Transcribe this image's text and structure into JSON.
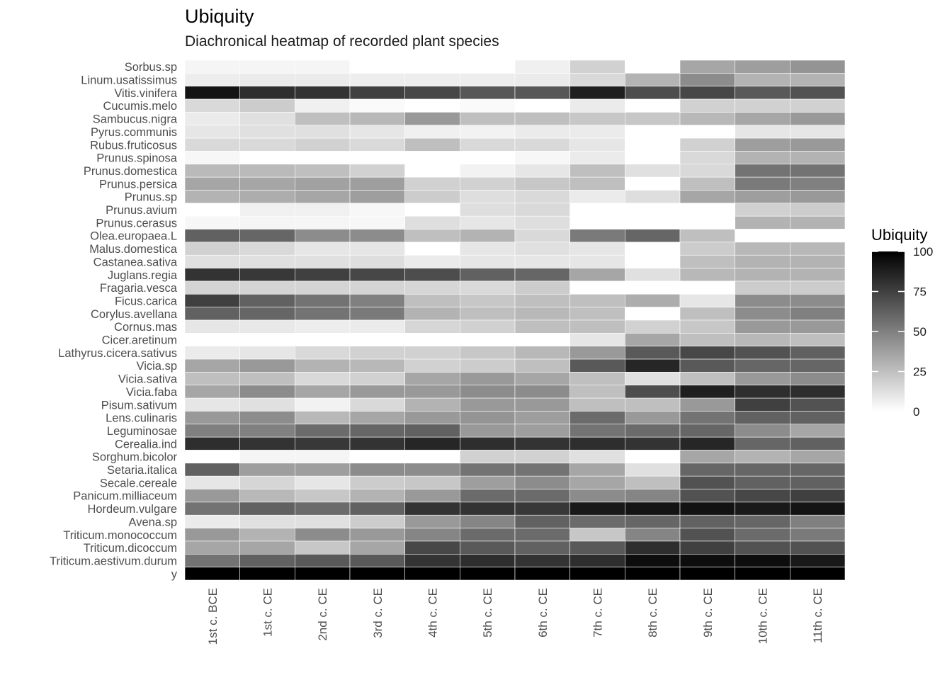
{
  "chart_data": {
    "type": "heatmap",
    "title": "Ubiquity",
    "subtitle": "Diachronical heatmap of recorded plant species",
    "xlabel": "",
    "ylabel": "",
    "x_categories": [
      "1st c. BCE",
      "1st c. CE",
      "2nd c. CE",
      "3rd c. CE",
      "4th c. CE",
      "5th c. CE",
      "6th c. CE",
      "7th c. CE",
      "8th c. CE",
      "9th c. CE",
      "10th c. CE",
      "11th c. CE"
    ],
    "y_categories": [
      "Sorbus.sp",
      "Linum.usatissimus",
      "Vitis.vinifera",
      "Cucumis.melo",
      "Sambucus.nigra",
      "Pyrus.communis",
      "Rubus.fruticosus",
      "Prunus.spinosa",
      "Prunus.domestica",
      "Prunus.persica",
      "Prunus.sp",
      "Prunus.avium",
      "Prunus.cerasus",
      "Olea.europaea.L",
      "Malus.domestica",
      "Castanea.sativa",
      "Juglans.regia",
      "Fragaria.vesca",
      "Ficus.carica",
      "Corylus.avellana",
      "Cornus.mas",
      "Cicer.aretinum",
      "Lathyrus.cicera.sativus",
      "Vicia.sp",
      "Vicia.sativa",
      "Vicia.faba",
      "Pisum.sativum",
      "Lens.culinaris",
      "Leguminosae",
      "Cerealia.ind",
      "Sorghum.bicolor",
      "Setaria.italica",
      "Secale.cereale",
      "Panicum.milliaceum",
      "Hordeum.vulgare",
      "Avena.sp",
      "Triticum.monococcum",
      "Triticum.dicoccum",
      "Triticum.aestivum.durum",
      "y"
    ],
    "values": [
      [
        4,
        4,
        4,
        0,
        0,
        0,
        6,
        18,
        0,
        35,
        38,
        42
      ],
      [
        7,
        8,
        8,
        7,
        7,
        7,
        8,
        15,
        30,
        45,
        30,
        30
      ],
      [
        92,
        82,
        80,
        75,
        72,
        66,
        66,
        88,
        70,
        72,
        65,
        68
      ],
      [
        15,
        20,
        6,
        2,
        0,
        2,
        0,
        8,
        0,
        18,
        18,
        18
      ],
      [
        8,
        12,
        25,
        28,
        40,
        25,
        25,
        22,
        22,
        28,
        35,
        40
      ],
      [
        10,
        12,
        12,
        10,
        6,
        5,
        8,
        8,
        0,
        0,
        10,
        10
      ],
      [
        15,
        15,
        18,
        15,
        25,
        15,
        15,
        10,
        0,
        18,
        38,
        40
      ],
      [
        3,
        0,
        0,
        0,
        0,
        0,
        3,
        8,
        0,
        15,
        30,
        30
      ],
      [
        27,
        27,
        25,
        18,
        0,
        5,
        10,
        25,
        12,
        15,
        55,
        55
      ],
      [
        35,
        35,
        37,
        38,
        18,
        18,
        22,
        25,
        0,
        25,
        52,
        50
      ],
      [
        30,
        32,
        35,
        38,
        20,
        13,
        15,
        8,
        13,
        35,
        38,
        40
      ],
      [
        0,
        6,
        6,
        3,
        0,
        13,
        15,
        0,
        0,
        0,
        18,
        20
      ],
      [
        3,
        4,
        4,
        3,
        13,
        10,
        13,
        0,
        0,
        0,
        30,
        30
      ],
      [
        62,
        60,
        45,
        45,
        25,
        30,
        15,
        52,
        60,
        25,
        0,
        0
      ],
      [
        18,
        15,
        10,
        10,
        0,
        10,
        12,
        10,
        0,
        20,
        28,
        28
      ],
      [
        12,
        12,
        12,
        13,
        8,
        10,
        10,
        10,
        0,
        25,
        30,
        30
      ],
      [
        80,
        78,
        75,
        72,
        70,
        62,
        60,
        35,
        12,
        28,
        30,
        30
      ],
      [
        17,
        17,
        17,
        17,
        16,
        15,
        20,
        0,
        0,
        0,
        20,
        20
      ],
      [
        75,
        62,
        55,
        50,
        25,
        22,
        25,
        25,
        32,
        10,
        45,
        45
      ],
      [
        62,
        60,
        55,
        52,
        30,
        25,
        28,
        25,
        0,
        25,
        45,
        50
      ],
      [
        10,
        9,
        7,
        8,
        16,
        18,
        25,
        25,
        18,
        22,
        40,
        40
      ],
      [
        0,
        0,
        0,
        0,
        0,
        0,
        0,
        10,
        35,
        25,
        28,
        25
      ],
      [
        8,
        10,
        15,
        18,
        18,
        22,
        28,
        40,
        65,
        72,
        68,
        62
      ],
      [
        35,
        40,
        30,
        28,
        18,
        20,
        25,
        65,
        85,
        65,
        60,
        60
      ],
      [
        25,
        25,
        15,
        18,
        35,
        40,
        35,
        25,
        12,
        25,
        40,
        45
      ],
      [
        35,
        45,
        35,
        40,
        40,
        45,
        45,
        25,
        70,
        88,
        82,
        82
      ],
      [
        10,
        12,
        5,
        15,
        30,
        40,
        40,
        25,
        25,
        40,
        75,
        68
      ],
      [
        40,
        45,
        28,
        35,
        40,
        42,
        38,
        58,
        40,
        55,
        62,
        62
      ],
      [
        50,
        50,
        58,
        60,
        62,
        40,
        38,
        55,
        58,
        60,
        45,
        35
      ],
      [
        82,
        80,
        78,
        80,
        85,
        82,
        80,
        82,
        80,
        85,
        60,
        62
      ],
      [
        0,
        4,
        4,
        0,
        0,
        18,
        18,
        12,
        0,
        35,
        30,
        35
      ],
      [
        62,
        38,
        38,
        45,
        45,
        55,
        55,
        35,
        12,
        60,
        60,
        60
      ],
      [
        10,
        16,
        10,
        20,
        22,
        38,
        45,
        35,
        25,
        68,
        62,
        62
      ],
      [
        40,
        28,
        22,
        30,
        40,
        58,
        58,
        45,
        48,
        68,
        72,
        75
      ],
      [
        55,
        62,
        58,
        62,
        80,
        80,
        78,
        90,
        92,
        93,
        90,
        92
      ],
      [
        8,
        12,
        12,
        20,
        40,
        48,
        62,
        58,
        60,
        62,
        60,
        50
      ],
      [
        40,
        30,
        45,
        40,
        48,
        58,
        58,
        22,
        48,
        68,
        58,
        52
      ],
      [
        35,
        35,
        22,
        35,
        72,
        65,
        62,
        65,
        82,
        75,
        68,
        68
      ],
      [
        55,
        62,
        65,
        65,
        80,
        82,
        80,
        82,
        95,
        95,
        95,
        90
      ],
      [
        100,
        100,
        100,
        100,
        100,
        100,
        100,
        100,
        100,
        100,
        100,
        100
      ]
    ],
    "color_scale": {
      "low": "#ffffff",
      "high": "#000000",
      "min": 0,
      "max": 100
    },
    "legend": {
      "title": "Ubiquity",
      "placement": "right",
      "ticks": [
        0,
        25,
        50,
        75,
        100
      ]
    },
    "grid": false
  }
}
